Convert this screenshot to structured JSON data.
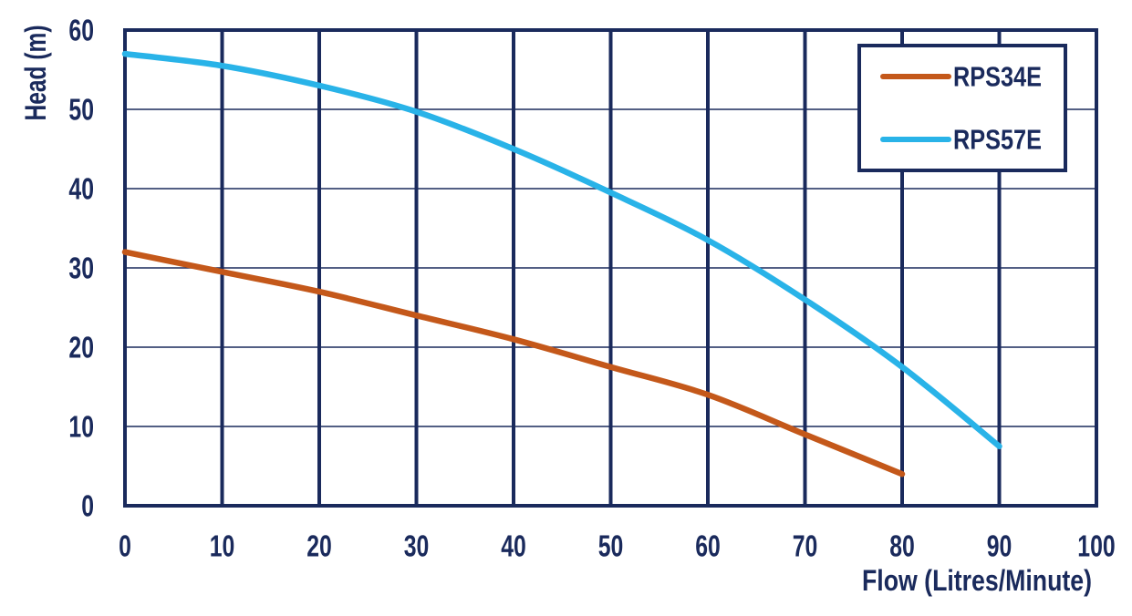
{
  "chart_data": {
    "type": "line",
    "title": "",
    "xlabel": "Flow (Litres/Minute)",
    "ylabel": "Head (m)",
    "xlim": [
      0,
      100
    ],
    "ylim": [
      0,
      60
    ],
    "x_ticks": [
      0,
      10,
      20,
      30,
      40,
      50,
      60,
      70,
      80,
      90,
      100
    ],
    "y_ticks": [
      0,
      10,
      20,
      30,
      40,
      50,
      60
    ],
    "grid": "on",
    "legend_position": "top-right",
    "series": [
      {
        "name": "RPS34E",
        "color": "#C4581A",
        "x": [
          0,
          10,
          20,
          30,
          40,
          50,
          60,
          70,
          80
        ],
        "y": [
          32,
          29.5,
          27,
          24,
          21,
          17.5,
          14,
          9,
          4
        ]
      },
      {
        "name": "RPS57E",
        "color": "#29B3E8",
        "x": [
          0,
          10,
          20,
          30,
          40,
          50,
          60,
          70,
          80,
          90
        ],
        "y": [
          57,
          55.5,
          53,
          49.7,
          45,
          39.5,
          33.5,
          26,
          17.5,
          7.5
        ]
      }
    ],
    "axis_color": "#1A2A5C",
    "background_color": "#FFFFFF"
  }
}
